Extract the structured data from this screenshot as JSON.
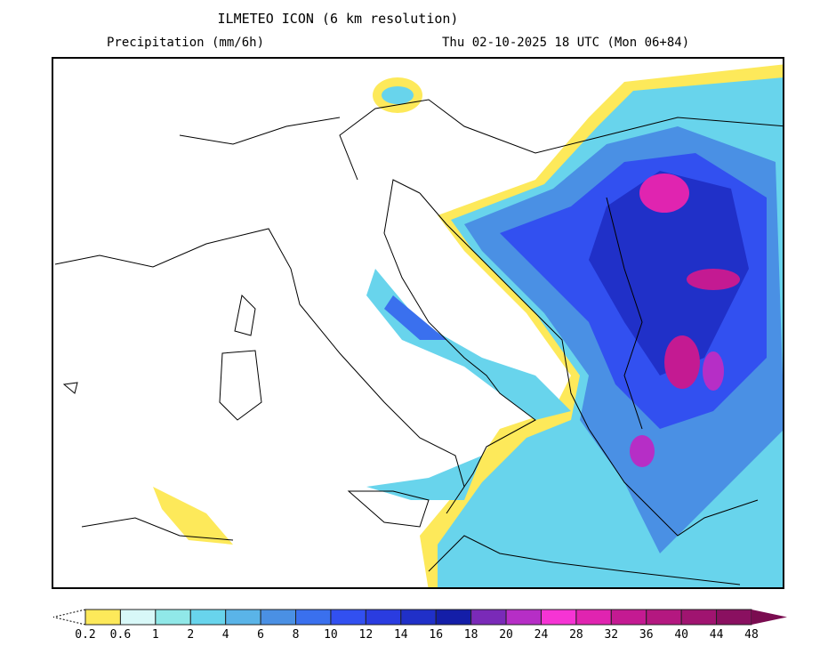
{
  "header": {
    "title": "ILMETEO ICON (6 km resolution)",
    "variable": "Precipitation (mm/6h)",
    "valid_time": "Thu 02-10-2025 18 UTC (Mon 06+84)"
  },
  "colorbar": {
    "labels": [
      "0.2",
      "0.6",
      "1",
      "2",
      "4",
      "6",
      "8",
      "10",
      "12",
      "14",
      "16",
      "18",
      "20",
      "24",
      "28",
      "32",
      "36",
      "40",
      "44",
      "48"
    ],
    "colors": [
      "#fde95a",
      "#d8f8f8",
      "#90e8e8",
      "#68d4ec",
      "#5ab4e8",
      "#4a90e4",
      "#3a70ee",
      "#3250f0",
      "#2a3ce0",
      "#2030c8",
      "#141ea8",
      "#7a2ab8",
      "#b62ec6",
      "#f634d4",
      "#e024b0",
      "#c41a92",
      "#b41880",
      "#a01470",
      "#8a1060"
    ],
    "over_color": "#7a0c50"
  }
}
